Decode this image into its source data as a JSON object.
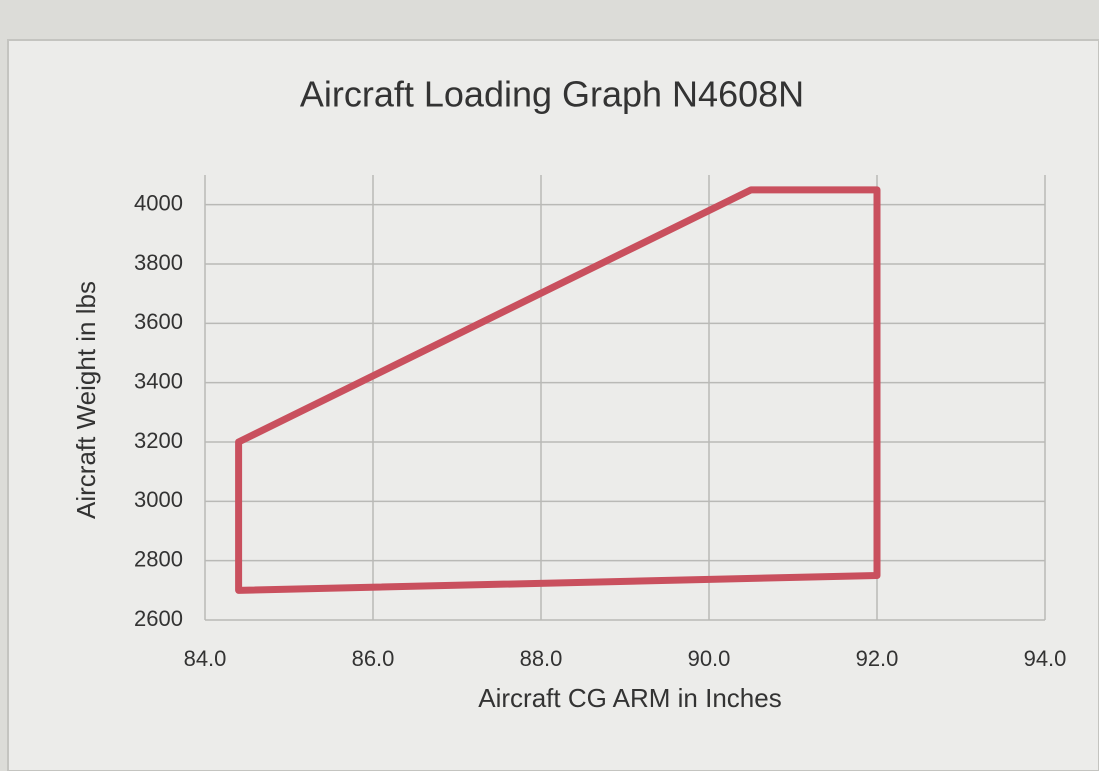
{
  "chart_data": {
    "type": "line",
    "title": "Aircraft Loading Graph N4608N",
    "xlabel": "Aircraft CG ARM in Inches",
    "ylabel": "Aircraft Weight in lbs",
    "closed": true,
    "color": "#c9505e",
    "grid": true,
    "x": [
      84.4,
      90.5,
      92.0,
      92.0,
      84.4
    ],
    "values": [
      3200,
      4050,
      4050,
      2750,
      2700
    ],
    "xlim": [
      84,
      94
    ],
    "ylim": [
      2600,
      4100
    ],
    "xticks": [
      {
        "value": 84,
        "label": "84.0"
      },
      {
        "value": 86,
        "label": "86.0"
      },
      {
        "value": 88,
        "label": "88.0"
      },
      {
        "value": 90,
        "label": "90.0"
      },
      {
        "value": 92,
        "label": "92.0"
      },
      {
        "value": 94,
        "label": "94.0"
      }
    ],
    "yticks": [
      2600,
      2800,
      3000,
      3200,
      3400,
      3600,
      3800,
      4000
    ]
  }
}
